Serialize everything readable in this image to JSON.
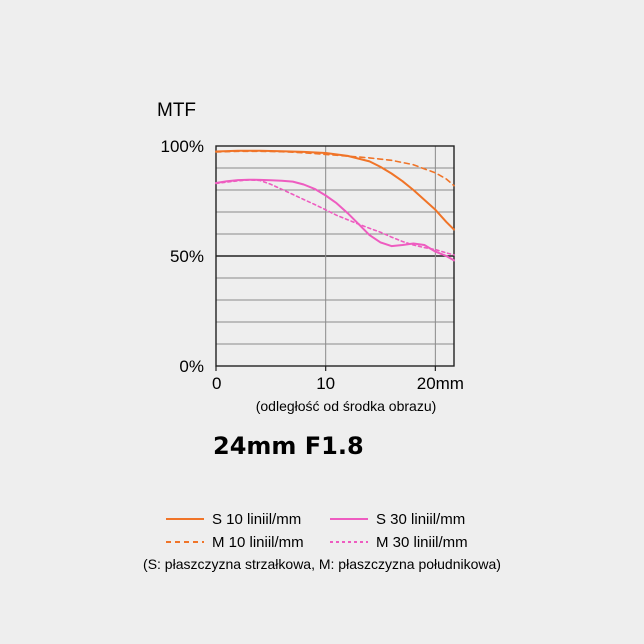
{
  "chart_data": {
    "type": "line",
    "title": "24mm F1.8",
    "ylabel": "MTF",
    "xlabel": "(odległość od środka obrazu)",
    "xlim": [
      0,
      21.7
    ],
    "ylim": [
      0,
      100
    ],
    "x_ticks": [
      {
        "value": 0,
        "label": "0"
      },
      {
        "value": 10,
        "label": "10"
      },
      {
        "value": 20,
        "label": "20mm"
      }
    ],
    "y_ticks": [
      {
        "value": 100,
        "label": "100%"
      },
      {
        "value": 50,
        "label": "50%"
      },
      {
        "value": 0,
        "label": "0%"
      }
    ],
    "gridlines_y": [
      10,
      20,
      30,
      40,
      50,
      60,
      70,
      80,
      90
    ],
    "grid": true,
    "series": [
      {
        "name": "S 10 liniil/mm",
        "color": "#f07428",
        "dash": "solid",
        "x": [
          0,
          2,
          4,
          6,
          8,
          10,
          12,
          14,
          15,
          16,
          17,
          18,
          19,
          20,
          21,
          21.7
        ],
        "y": [
          97.5,
          97.8,
          97.8,
          97.6,
          97.3,
          96.8,
          95.5,
          93,
          90.5,
          87.5,
          84,
          80,
          75.5,
          71,
          65.5,
          62
        ]
      },
      {
        "name": "M 10 liniil/mm",
        "color": "#f07428",
        "dash": "dashed",
        "x": [
          0,
          2,
          4,
          6,
          8,
          10,
          12,
          14,
          16,
          18,
          19,
          20,
          21,
          21.7
        ],
        "y": [
          97.3,
          97.6,
          97.6,
          97.4,
          96.9,
          96.2,
          95.4,
          94.6,
          93.5,
          91.5,
          89.6,
          87.8,
          85,
          82
        ]
      },
      {
        "name": "S 30 liniil/mm",
        "color": "#ee5cc0",
        "dash": "solid",
        "x": [
          0,
          1,
          2,
          3,
          4,
          5,
          6,
          7,
          8,
          9,
          10,
          11,
          12,
          13,
          14,
          15,
          16,
          17,
          18,
          19,
          20,
          21,
          21.7
        ],
        "y": [
          83.2,
          84,
          84.5,
          84.7,
          84.6,
          84.4,
          84.2,
          83.8,
          82.5,
          80.5,
          77.5,
          74,
          69.5,
          64.5,
          59.5,
          56.2,
          54.5,
          55,
          55.7,
          55,
          52,
          50,
          48
        ]
      },
      {
        "name": "M 30 liniil/mm",
        "color": "#ee5cc0",
        "dash": "dotted",
        "x": [
          0,
          1,
          2,
          3,
          4,
          5,
          6,
          7,
          8,
          9,
          10,
          11,
          12,
          13,
          14,
          15,
          16,
          17,
          18,
          19,
          20,
          21,
          21.7
        ],
        "y": [
          83,
          83.6,
          84.2,
          84.6,
          84.3,
          82.6,
          80.3,
          78,
          75.7,
          73.4,
          71,
          68.5,
          66.5,
          64.5,
          62.6,
          60.8,
          58.6,
          56.6,
          55,
          53.8,
          52.9,
          51.4,
          50.5
        ]
      }
    ],
    "legend": {
      "placement": "bottom",
      "note": "(S: płaszczyzna strzałkowa, M: płaszczyzna południkowa)"
    }
  }
}
